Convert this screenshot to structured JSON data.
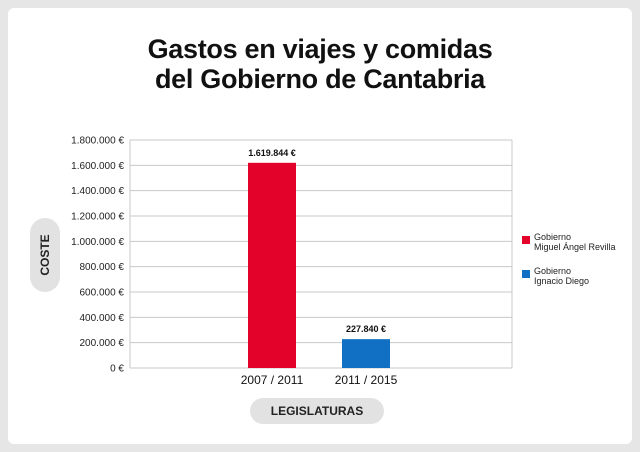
{
  "title_lines": [
    "Gastos en viajes y comidas",
    "del Gobierno de Cantabria"
  ],
  "colors": {
    "red": "#e3022a",
    "blue": "#1170c4",
    "grid": "#c8c8c8"
  },
  "chart_data": {
    "type": "bar",
    "title": "Gastos en viajes y comidas del Gobierno de Cantabria",
    "categories": [
      "2007 / 2011",
      "2011 / 2015"
    ],
    "values": [
      1619844,
      227840
    ],
    "value_labels": [
      "1.619.844 €",
      "227.840 €"
    ],
    "bar_colors": [
      "#e3022a",
      "#1170c4"
    ],
    "xlabel": "LEGISLATURAS",
    "ylabel": "COSTE",
    "ylim": [
      0,
      1800000
    ],
    "yticks": [
      0,
      200000,
      400000,
      600000,
      800000,
      1000000,
      1200000,
      1400000,
      1600000,
      1800000
    ],
    "ytick_labels": [
      "0 €",
      "200.000 €",
      "400.000 €",
      "600.000 €",
      "800.000 €",
      "1.000.000 €",
      "1.200.000 €",
      "1.400.000 €",
      "1.600.000 €",
      "1.800.000 €"
    ],
    "grid": true,
    "legend_position": "right",
    "legend": [
      {
        "lines": [
          "Gobierno",
          "Miguel Ángel Revilla"
        ],
        "color": "#e3022a"
      },
      {
        "lines": [
          "Gobierno",
          "Ignacio Diego"
        ],
        "color": "#1170c4"
      }
    ]
  }
}
